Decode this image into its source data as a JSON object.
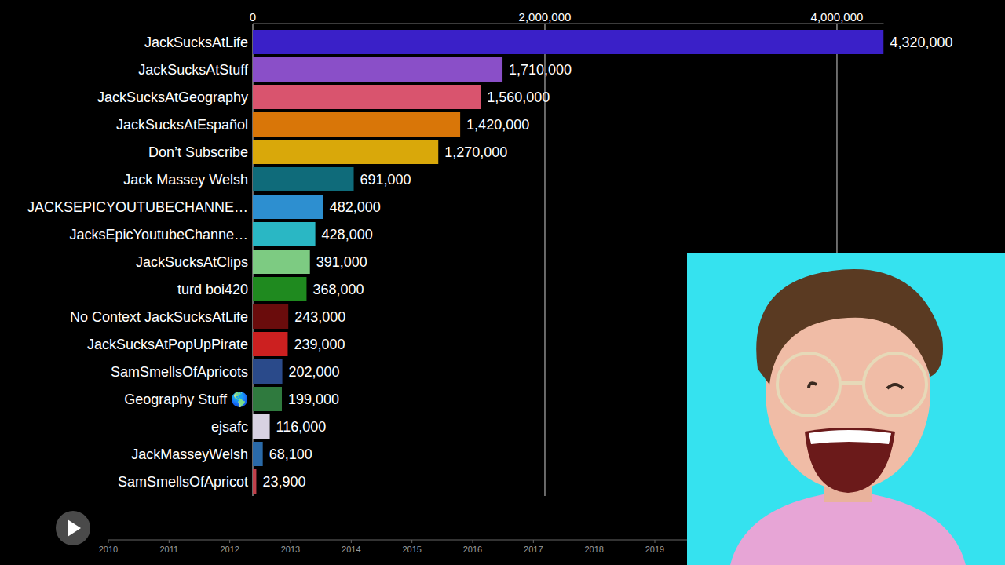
{
  "chart_data": {
    "type": "bar",
    "orientation": "horizontal",
    "grid": true,
    "data_labels": true,
    "categories": [
      "JackSucksAtLife",
      "JackSucksAtStuff",
      "JackSucksAtGeography",
      "JackSucksAtEspañol",
      "Don’t Subscribe",
      "Jack Massey Welsh",
      "JACKSEPICYOUTUBECHANNE…",
      "JacksEpicYoutubeChanne…",
      "JackSucksAtClips",
      "turd boi420",
      "No Context JackSucksAtLife",
      "JackSucksAtPopUpPirate",
      "SamSmellsOfApricots",
      "Geography Stuff 🌎",
      "ejsafc",
      "JackMasseyWelsh",
      "SamSmellsOfApricot"
    ],
    "values": [
      4320000,
      1710000,
      1560000,
      1420000,
      1270000,
      691000,
      482000,
      428000,
      391000,
      368000,
      243000,
      239000,
      202000,
      199000,
      116000,
      68100,
      23900
    ],
    "value_labels": [
      "4,320,000",
      "1,710,000",
      "1,560,000",
      "1,420,000",
      "1,270,000",
      "691,000",
      "482,000",
      "428,000",
      "391,000",
      "368,000",
      "243,000",
      "239,000",
      "202,000",
      "199,000",
      "116,000",
      "68,100",
      "23,900"
    ],
    "colors": [
      "#3a20c8",
      "#8a4fc8",
      "#d9546e",
      "#d97608",
      "#d9a80a",
      "#0f6b7a",
      "#2d8fd0",
      "#2ab7c4",
      "#7dcb82",
      "#1f8a1f",
      "#6a0c0c",
      "#cc2020",
      "#2a4a8a",
      "#2f7a3e",
      "#d8d2e2",
      "#2a6aa8",
      "#c0404a"
    ],
    "xlim": [
      0,
      4320000
    ],
    "xticks": [
      0,
      {
        "value": 2000000,
        "label": "2,000,000"
      },
      {
        "value": 4000000,
        "label": "4,000,000"
      }
    ],
    "timeline": {
      "lim": [
        2010,
        2019
      ],
      "ticks": [
        2010,
        2011,
        2012,
        2013,
        2014,
        2015,
        2016,
        2017,
        2018,
        2019
      ]
    }
  }
}
